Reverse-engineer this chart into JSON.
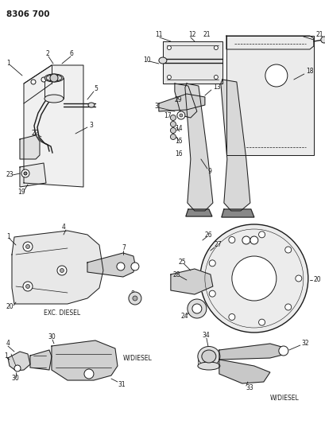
{
  "title": "8306 700",
  "bg_color": "#ffffff",
  "line_color": "#1a1a1a",
  "text_color": "#1a1a1a",
  "fig_width": 4.1,
  "fig_height": 5.33,
  "dpi": 100,
  "labels": {
    "top_left": "8306 700",
    "exc_diesel": "EXC. DIESEL",
    "w_diesel_1": "W/DIESEL",
    "w_diesel_2": "W/DIESEL"
  }
}
